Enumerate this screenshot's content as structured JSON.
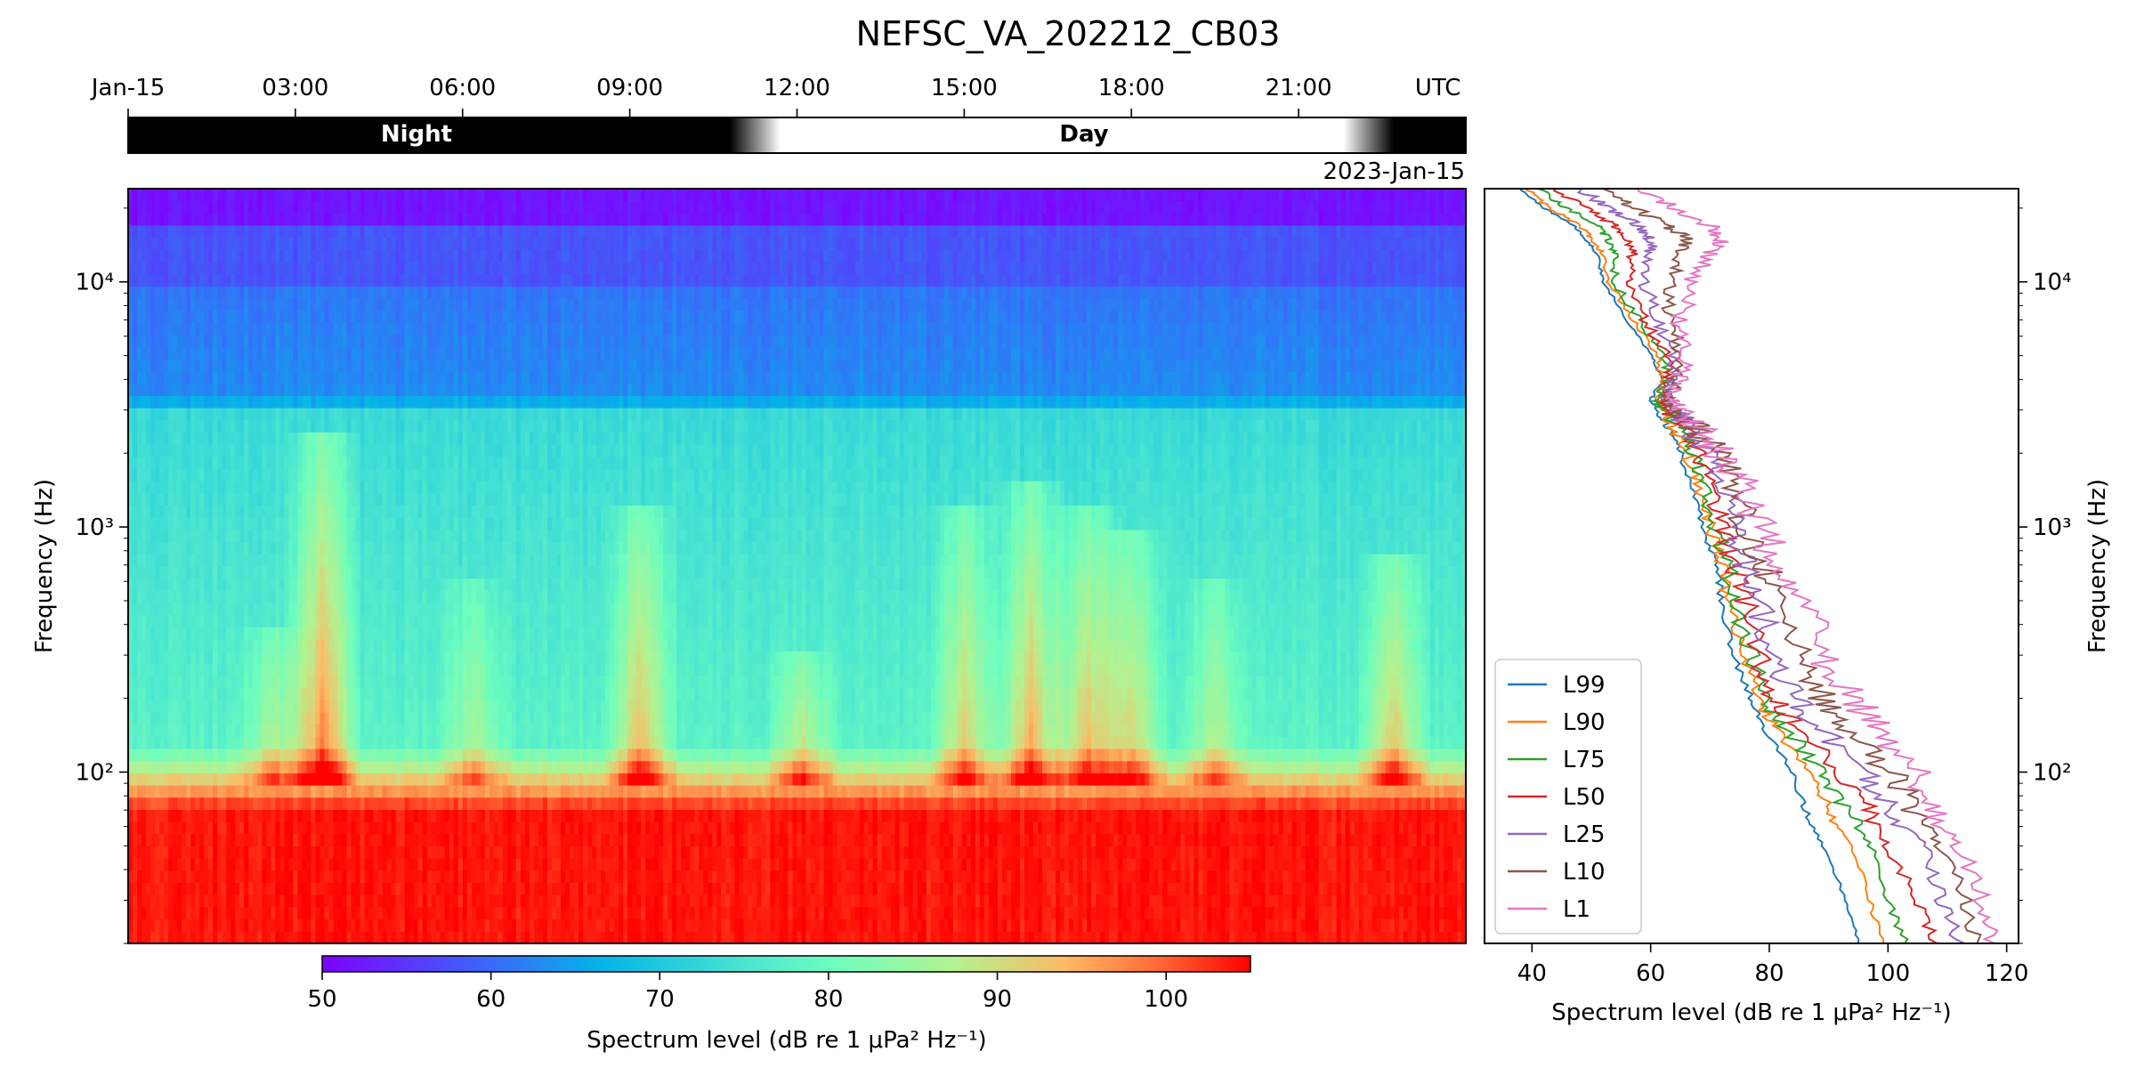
{
  "chart_data": {
    "title": "NEFSC_VA_202212_CB03",
    "daynight": {
      "tick_labels": [
        "Jan-15",
        "03:00",
        "06:00",
        "09:00",
        "12:00",
        "15:00",
        "18:00",
        "21:00",
        "UTC"
      ],
      "tick_hours": [
        0,
        3,
        6,
        9,
        12,
        15,
        18,
        21
      ],
      "utc_label_hour": 23.5,
      "night_label": "Night",
      "day_label": "Day",
      "sunrise_hour": 11.25,
      "sunset_hour": 22.25,
      "transition_hours": 0.9
    },
    "date_label": "2023-Jan-15",
    "spectrogram": {
      "type": "heatmap",
      "ylabel": "Frequency (Hz)",
      "yscale": "log",
      "ylim_hz": [
        20,
        24000
      ],
      "x_hours": [
        0,
        24
      ],
      "y_ticks": [
        {
          "value": 100,
          "label": "10²"
        },
        {
          "value": 1000,
          "label": "10³"
        },
        {
          "value": 10000,
          "label": "10⁴"
        }
      ],
      "events": [
        {
          "hour": 3.5,
          "top_hz": 2500,
          "strength": 1.0
        },
        {
          "hour": 2.6,
          "top_hz": 400,
          "strength": 0.5
        },
        {
          "hour": 6.2,
          "top_hz": 600,
          "strength": 0.45
        },
        {
          "hour": 9.2,
          "top_hz": 1200,
          "strength": 0.8
        },
        {
          "hour": 12.1,
          "top_hz": 300,
          "strength": 0.6
        },
        {
          "hour": 15.0,
          "top_hz": 1200,
          "strength": 0.7
        },
        {
          "hour": 16.2,
          "top_hz": 1500,
          "strength": 0.85
        },
        {
          "hour": 17.2,
          "top_hz": 1200,
          "strength": 0.8
        },
        {
          "hour": 18.0,
          "top_hz": 1000,
          "strength": 0.7
        },
        {
          "hour": 19.5,
          "top_hz": 600,
          "strength": 0.5
        },
        {
          "hour": 22.7,
          "top_hz": 800,
          "strength": 0.75
        }
      ]
    },
    "colorbar": {
      "label": "Spectrum level (dB re 1 μPa² Hz⁻¹)",
      "range": [
        50,
        105
      ],
      "ticks": [
        50,
        60,
        70,
        80,
        90,
        100
      ]
    },
    "percentiles": {
      "type": "line",
      "xlabel": "Spectrum level (dB re 1 μPa² Hz⁻¹)",
      "ylabel": "Frequency (Hz)",
      "xlim": [
        32,
        122
      ],
      "x_ticks": [
        40,
        60,
        80,
        100,
        120
      ],
      "yscale": "log",
      "ylim_hz": [
        20,
        24000
      ],
      "y_ticks": [
        {
          "value": 100,
          "label": "10²"
        },
        {
          "value": 1000,
          "label": "10³"
        },
        {
          "value": 10000,
          "label": "10⁴"
        }
      ],
      "legend_position": "bottom-left",
      "freqs_hz": [
        20,
        30,
        50,
        70,
        100,
        150,
        200,
        300,
        500,
        700,
        1000,
        1500,
        2000,
        2500,
        3000,
        3300,
        4000,
        5000,
        7000,
        10000,
        13000,
        15000,
        17000,
        20000,
        24000
      ],
      "series": [
        {
          "name": "L99",
          "color": "#1f77b4",
          "values": [
            95,
            93,
            89,
            86,
            84,
            79,
            77,
            74,
            72,
            71,
            69,
            67,
            65,
            63,
            61,
            60,
            62,
            60,
            56,
            52,
            51,
            49,
            47,
            42,
            38
          ]
        },
        {
          "name": "L90",
          "color": "#ff7f0e",
          "values": [
            99,
            97,
            94,
            90,
            87,
            81,
            78,
            76,
            73,
            72,
            70,
            68,
            66,
            64,
            62,
            61,
            62,
            61,
            57,
            53,
            52,
            50,
            48,
            43,
            39
          ]
        },
        {
          "name": "L75",
          "color": "#2ca02c",
          "values": [
            103,
            100,
            97,
            93,
            89,
            83,
            79,
            77,
            74,
            73,
            71,
            69,
            67,
            65,
            62,
            61,
            63,
            62,
            58,
            54,
            54,
            53,
            51,
            46,
            41
          ]
        },
        {
          "name": "L50",
          "color": "#d62728",
          "values": [
            108,
            105,
            100,
            97,
            92,
            85,
            81,
            78,
            76,
            74,
            72,
            70,
            68,
            66,
            63,
            62,
            63,
            63,
            59,
            56,
            57,
            56,
            54,
            49,
            44
          ]
        },
        {
          "name": "L25",
          "color": "#9467bd",
          "values": [
            112,
            109,
            106,
            101,
            96,
            89,
            84,
            81,
            78,
            76,
            74,
            72,
            69,
            67,
            64,
            62,
            64,
            64,
            61,
            59,
            60,
            60,
            58,
            53,
            48
          ]
        },
        {
          "name": "L10",
          "color": "#8c564b",
          "values": [
            115,
            113,
            109,
            104,
            101,
            93,
            89,
            85,
            81,
            79,
            76,
            74,
            71,
            68,
            64,
            63,
            64,
            65,
            63,
            63,
            65,
            66,
            63,
            57,
            52
          ]
        },
        {
          "name": "L1",
          "color": "#e377c2",
          "values": [
            118,
            116,
            112,
            108,
            105,
            98,
            94,
            89,
            86,
            82,
            78,
            76,
            72,
            69,
            65,
            64,
            65,
            66,
            65,
            67,
            70,
            72,
            70,
            64,
            58
          ]
        }
      ]
    }
  }
}
